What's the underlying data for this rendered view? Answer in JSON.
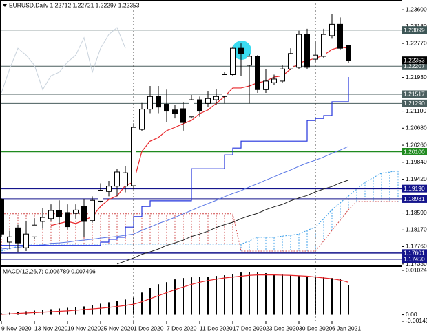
{
  "chart_data": [
    {
      "type": "candlestick",
      "title": "EURUSD,Daily 1.22712 1.22721 1.22297 1.22353",
      "categories": [
        "9 Nov 2020",
        null,
        null,
        null,
        "13 Nov 2020",
        null,
        null,
        null,
        "19 Nov 2020",
        null,
        null,
        null,
        "25 Nov 2020",
        null,
        null,
        null,
        "1 Dec 2020",
        null,
        null,
        null,
        "7 Dec 2020",
        null,
        null,
        null,
        "11 Dec 2020",
        null,
        null,
        null,
        "17 Dec 2020",
        null,
        null,
        null,
        "23 Dec 2020",
        null,
        null,
        null,
        "30 Dec 2020",
        null,
        null,
        null,
        "6 Jan 2021",
        null,
        null,
        null,
        null,
        null,
        null,
        null,
        null
      ],
      "open": [
        1.1892,
        1.1787,
        1.1822,
        1.1773,
        1.18,
        1.1838,
        1.1845,
        1.1865,
        1.186,
        1.1858,
        1.1875,
        1.184,
        1.1888,
        1.1912,
        1.1925,
        1.1925,
        1.1926,
        1.2065,
        1.2115,
        1.2146,
        1.2127,
        1.2113,
        1.2116,
        1.2096,
        1.2138,
        1.2129,
        1.2138,
        1.2146,
        1.22,
        1.2265,
        1.2223,
        1.2245,
        1.2163,
        1.218,
        1.2184,
        1.2214,
        1.2218,
        1.2299,
        1.2238,
        1.2245,
        1.2296,
        1.2324,
        1.22712,
        null,
        null,
        null,
        null,
        null,
        null
      ],
      "high": [
        1.1895,
        1.1815,
        1.183,
        1.1838,
        1.1846,
        1.187,
        1.188,
        1.189,
        1.188,
        1.188,
        1.1892,
        1.19,
        1.1932,
        1.1938,
        1.1968,
        1.1975,
        1.208,
        1.213,
        1.2172,
        1.2172,
        1.2163,
        1.2126,
        1.2133,
        1.215,
        1.2146,
        1.216,
        1.2165,
        1.2206,
        1.2269,
        1.2277,
        1.2252,
        1.2248,
        1.2214,
        1.22,
        1.2223,
        1.2265,
        1.2308,
        1.2313,
        1.2282,
        1.2313,
        1.235,
        1.2341,
        1.22721,
        null,
        null,
        null,
        null,
        null,
        null
      ],
      "low": [
        1.18,
        1.177,
        1.1762,
        1.1765,
        1.1795,
        1.182,
        1.184,
        1.1832,
        1.1818,
        1.1845,
        1.18,
        1.1835,
        1.1885,
        1.19,
        1.19,
        1.191,
        1.1918,
        1.206,
        1.2105,
        1.2105,
        1.2082,
        1.2092,
        1.2062,
        1.2092,
        1.2096,
        1.212,
        1.2125,
        1.2129,
        1.2197,
        1.2197,
        1.2129,
        1.2155,
        1.2155,
        1.2175,
        1.218,
        1.2211,
        1.2214,
        1.2214,
        1.2231,
        1.224,
        1.229,
        1.2262,
        1.22297,
        null,
        null,
        null,
        null,
        null,
        null
      ],
      "close": [
        1.1807,
        1.18,
        1.1785,
        1.1807,
        1.1829,
        1.1848,
        1.1865,
        1.185,
        1.1825,
        1.1866,
        1.1838,
        1.189,
        1.1915,
        1.1925,
        1.196,
        1.1958,
        1.207,
        1.2115,
        1.2146,
        1.212,
        1.211,
        1.2105,
        1.2082,
        1.2138,
        1.211,
        1.2141,
        1.2146,
        1.22,
        1.2265,
        1.2252,
        1.2245,
        1.2163,
        1.2184,
        1.2189,
        1.2214,
        1.2252,
        1.2299,
        1.2218,
        1.2248,
        1.2299,
        1.2324,
        1.2265,
        1.22353,
        null,
        null,
        null,
        null,
        null,
        null
      ],
      "up_color": "#ffffff",
      "down_color": "#000000",
      "candle_edge": "#000000",
      "cloud": {
        "up_color": "#3a9ee8",
        "down_color": "#d04848",
        "span_a": [
          1.1765,
          1.177,
          1.1777,
          1.1782,
          1.1782,
          1.1782,
          1.1782,
          1.1782,
          1.1782,
          1.1782,
          1.1782,
          1.1782,
          1.1782,
          1.1782,
          1.1782,
          1.1782,
          1.1782,
          1.1782,
          1.1782,
          1.1782,
          1.1782,
          1.1782,
          1.1782,
          1.1782,
          1.1782,
          1.1782,
          1.1782,
          1.1782,
          1.1782,
          1.1782,
          1.179,
          1.1799,
          1.1799,
          1.1799,
          1.1802,
          1.1804,
          1.1807,
          1.1816,
          1.1824,
          1.1845,
          1.1867,
          1.1884,
          1.1901,
          1.1918,
          1.1935,
          1.1946,
          1.1957,
          1.196,
          1.1963
        ],
        "span_b": [
          1.1857,
          1.1857,
          1.1857,
          1.1857,
          1.1857,
          1.1857,
          1.1857,
          1.1857,
          1.1857,
          1.1857,
          1.1857,
          1.1857,
          1.1857,
          1.1857,
          1.1857,
          1.1857,
          1.1857,
          1.1857,
          1.1857,
          1.1857,
          1.1857,
          1.1857,
          1.1857,
          1.1857,
          1.1857,
          1.1857,
          1.1857,
          1.1857,
          1.1857,
          1.1765,
          1.1765,
          1.1765,
          1.1765,
          1.1765,
          1.1765,
          1.1765,
          1.1765,
          1.1765,
          1.1765,
          1.179,
          1.1816,
          1.1841,
          1.1867,
          1.1887,
          1.1887,
          1.1887,
          1.1887,
          1.1887,
          1.1887
        ]
      },
      "lines": [
        {
          "color": "#c8d2dc",
          "width": 1,
          "values": [
            1.2155,
            1.2214,
            1.2265,
            1.2248,
            1.2223,
            1.2163,
            1.2197,
            1.2206,
            1.2231,
            1.2248,
            1.2291,
            1.2206,
            1.2265,
            1.2299,
            1.2316,
            1.2265,
            null,
            null,
            null,
            null,
            null,
            null,
            null,
            null,
            null,
            null,
            null,
            null,
            null,
            null,
            null,
            null,
            null,
            null,
            null,
            null,
            null,
            null,
            null,
            null,
            null,
            null,
            null,
            null,
            null,
            null,
            null,
            null,
            null
          ]
        },
        {
          "color": "#5b78e6",
          "width": 1,
          "values": [
            1.177,
            1.1772,
            1.1774,
            1.1777,
            1.1779,
            1.178,
            1.1784,
            1.1785,
            1.1787,
            1.179,
            1.1792,
            1.1794,
            1.1797,
            1.1799,
            1.1801,
            1.1804,
            1.1807,
            1.1816,
            1.1824,
            1.1833,
            1.184,
            1.1848,
            1.1857,
            1.1865,
            1.1874,
            1.1882,
            1.189,
            1.1899,
            1.1907,
            1.1914,
            1.1923,
            1.1931,
            1.194,
            1.1948,
            1.1957,
            1.1965,
            1.1974,
            1.1982,
            1.1989,
            1.1997,
            1.2006,
            1.2014,
            1.2023,
            null,
            null,
            null,
            null,
            null,
            null
          ]
        },
        {
          "color": "#222222",
          "width": 1,
          "values": [
            null,
            null,
            null,
            null,
            null,
            null,
            null,
            null,
            null,
            null,
            null,
            null,
            null,
            null,
            1.1733,
            1.174,
            1.1748,
            1.1757,
            1.1763,
            1.177,
            1.1779,
            1.1785,
            1.1792,
            1.1801,
            1.1807,
            1.1814,
            1.1823,
            1.183,
            1.1836,
            1.1845,
            1.1852,
            1.1858,
            1.1867,
            1.1874,
            1.188,
            1.1889,
            1.1896,
            1.1902,
            1.1911,
            1.1918,
            1.1924,
            1.1933,
            1.194,
            null,
            null,
            null,
            null,
            null,
            null
          ]
        },
        {
          "color": "#2233dd",
          "width": 1.2,
          "step": true,
          "values": [
            1.1779,
            1.1779,
            1.1779,
            1.1779,
            1.1779,
            1.1779,
            1.1779,
            1.1779,
            1.1779,
            1.1779,
            1.1779,
            1.1779,
            1.1787,
            1.1794,
            1.1799,
            1.1824,
            1.185,
            1.1875,
            1.1889,
            1.1889,
            1.1889,
            1.1889,
            1.1889,
            1.1968,
            1.1968,
            1.1968,
            1.1968,
            1.2002,
            1.2019,
            1.2036,
            1.2036,
            1.2036,
            1.2036,
            1.2036,
            1.2036,
            1.2036,
            1.2036,
            1.2087,
            1.2092,
            1.2099,
            1.2133,
            1.2133,
            1.2194,
            null,
            null,
            null,
            null,
            null,
            null
          ]
        },
        {
          "color": "#e8262a",
          "width": 1.2,
          "values": [
            null,
            null,
            null,
            null,
            null,
            null,
            1.1828,
            1.1833,
            1.1838,
            1.1833,
            1.1841,
            1.185,
            1.1875,
            1.1892,
            1.1901,
            1.1926,
            1.1935,
            1.2011,
            1.2036,
            1.2045,
            1.2062,
            1.207,
            1.2079,
            1.2087,
            1.2104,
            1.2113,
            1.2129,
            1.2146,
            1.2167,
            1.2167,
            1.2172,
            1.218,
            1.2184,
            1.2194,
            1.2197,
            1.2214,
            1.2228,
            1.2235,
            1.224,
            1.2248,
            1.2262,
            1.2268,
            1.2265,
            null,
            null,
            null,
            null,
            null,
            null
          ]
        }
      ],
      "levels": [
        {
          "value": 1.23099,
          "color": "#3d5656",
          "width": 1
        },
        {
          "value": 1.22207,
          "color": "#4a5e5e",
          "width": 1
        },
        {
          "value": 1.21517,
          "color": "#4a5e5e",
          "width": 1
        },
        {
          "value": 1.2129,
          "label": "1.21290",
          "color": "#4a5e5e",
          "width": 1
        },
        {
          "value": 1.201,
          "label": "1.20100",
          "color": "#1f8a1f",
          "width": 1.5
        },
        {
          "value": 1.1919,
          "label": "1.19190",
          "color": "#14148c",
          "width": 2
        },
        {
          "value": 1.18931,
          "color": "#14148c",
          "width": 2
        },
        {
          "value": 1.17601,
          "color": "#14148c",
          "width": 1.5
        },
        {
          "value": 1.1745,
          "label": "1.17450",
          "color": "#14148c",
          "width": 1.5
        }
      ],
      "bid": {
        "value": 1.22353,
        "color": "#000000"
      },
      "ylim": [
        1.1731,
        1.2384
      ],
      "yticks": [
        {
          "value": 1.236,
          "label": "1.23600"
        },
        {
          "value": 1.2318,
          "label": "1.23180"
        },
        {
          "value": 1.2277,
          "label": "1.22770"
        },
        {
          "value": 1.2193,
          "label": "1.21930"
        },
        {
          "value": 1.211,
          "label": "1.21100"
        },
        {
          "value": 1.2068,
          "label": "1.20680"
        },
        {
          "value": 1.2026,
          "label": "1.20260"
        },
        {
          "value": 1.1984,
          "label": "1.19840"
        },
        {
          "value": 1.1942,
          "label": "1.19420"
        },
        {
          "value": 1.1859,
          "label": "1.18590"
        },
        {
          "value": 1.1817,
          "label": "1.18170"
        },
        {
          "value": 1.1776,
          "label": "1.17760"
        },
        {
          "value": 1.1733,
          "label": "1.17330"
        }
      ]
    },
    {
      "type": "macd",
      "title": "MACD(12,26,7) 0.006789 0.007496",
      "histogram": {
        "color": "#000000",
        "values": [
          0.00032,
          0.00048,
          0.00064,
          0.0008,
          0.00096,
          0.00112,
          0.00128,
          0.00144,
          0.0016,
          0.00176,
          0.00192,
          0.00224,
          0.00256,
          0.00288,
          0.0032,
          0.00352,
          0.004,
          0.00512,
          0.00624,
          0.00704,
          0.00752,
          0.00816,
          0.00848,
          0.00864,
          0.0088,
          0.0088,
          0.00896,
          0.00912,
          0.00944,
          0.00976,
          0.00992,
          0.00976,
          0.0096,
          0.00944,
          0.00928,
          0.00912,
          0.00896,
          0.00896,
          0.0088,
          0.00864,
          0.00848,
          0.00832,
          0.006789,
          null,
          null,
          null,
          null,
          null,
          null
        ]
      },
      "signal": {
        "color": "#e8262a",
        "values": [
          0.0001,
          0.0002,
          0.0003,
          0.0004,
          0.0005,
          0.0006,
          0.0007,
          0.0008,
          0.0009,
          0.00105,
          0.0012,
          0.00135,
          0.0015,
          0.0017,
          0.0019,
          0.00215,
          0.00245,
          0.003,
          0.0037,
          0.0044,
          0.0051,
          0.0058,
          0.0064,
          0.007,
          0.0075,
          0.0079,
          0.0082,
          0.0085,
          0.0087,
          0.0089,
          0.0091,
          0.0092,
          0.0092,
          0.0092,
          0.00915,
          0.0091,
          0.009,
          0.0089,
          0.0087,
          0.0085,
          0.0083,
          0.008,
          0.007496,
          null,
          null,
          null,
          null,
          null,
          null
        ]
      },
      "ylim": [
        -0.0015,
        0.0112
      ],
      "yticks": [
        0.010245,
        {
          "value": 0,
          "label": "0.00"
        },
        -0.001499
      ]
    }
  ]
}
